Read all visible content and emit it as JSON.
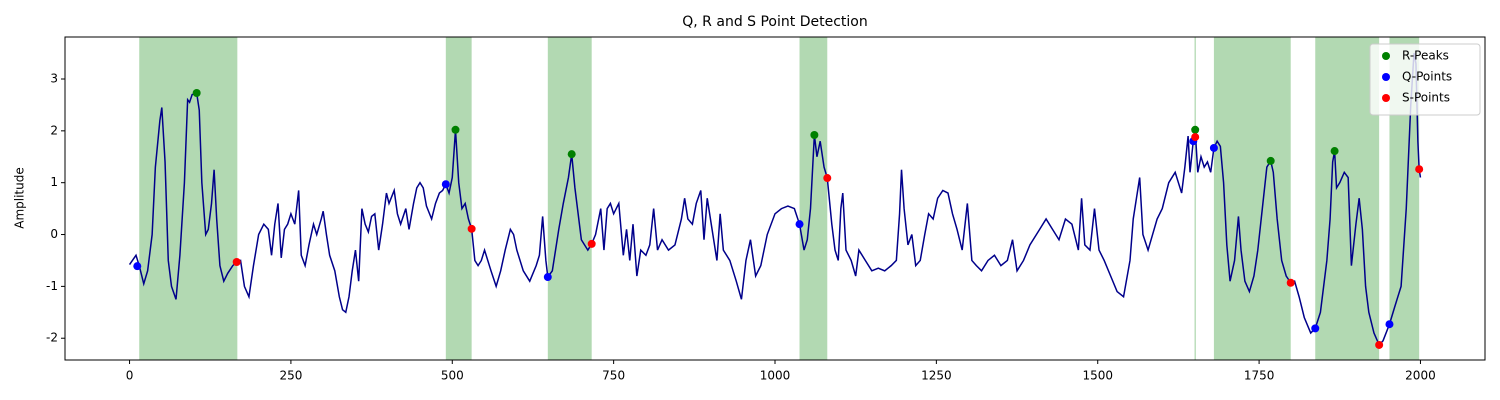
{
  "chart_data": {
    "type": "line",
    "title": "Q, R and S Point Detection",
    "y_label": "Amplitude",
    "xlim": [
      -100,
      2100
    ],
    "ylim": [
      -2.42,
      3.81
    ],
    "xticks": [
      0,
      250,
      500,
      750,
      1000,
      1250,
      1500,
      1750,
      2000
    ],
    "yticks": [
      -2,
      -1,
      0,
      1,
      2,
      3
    ],
    "legend": "upper right",
    "span_color": "#008000",
    "spans": [
      [
        15,
        167
      ],
      [
        490,
        530
      ],
      [
        648,
        716
      ],
      [
        1038,
        1081
      ],
      [
        1650,
        1652
      ],
      [
        1680,
        1799
      ],
      [
        1837,
        1936
      ],
      [
        1952,
        1998
      ]
    ],
    "series": [
      {
        "mode": "line",
        "color": "#00008b",
        "x": [
          0,
          10,
          15,
          22,
          28,
          35,
          40,
          47,
          50,
          55,
          60,
          65,
          72,
          78,
          85,
          90,
          93,
          97,
          104,
          108,
          112,
          118,
          122,
          127,
          131,
          135,
          140,
          146,
          152,
          160,
          166,
          172,
          178,
          185,
          192,
          200,
          208,
          215,
          220,
          225,
          230,
          235,
          240,
          245,
          250,
          256,
          262,
          266,
          272,
          278,
          285,
          290,
          297,
          300,
          305,
          310,
          318,
          325,
          330,
          335,
          340,
          345,
          350,
          355,
          360,
          365,
          370,
          375,
          380,
          386,
          392,
          398,
          402,
          410,
          415,
          420,
          428,
          433,
          440,
          445,
          450,
          455,
          460,
          468,
          474,
          480,
          485,
          490,
          495,
          500,
          505,
          510,
          515,
          520,
          525,
          530,
          535,
          540,
          545,
          550,
          555,
          560,
          568,
          575,
          582,
          590,
          595,
          600,
          610,
          620,
          630,
          635,
          640,
          645,
          648,
          655,
          660,
          665,
          672,
          680,
          685,
          690,
          700,
          710,
          716,
          722,
          730,
          735,
          740,
          745,
          750,
          758,
          765,
          770,
          775,
          780,
          786,
          792,
          800,
          806,
          812,
          818,
          825,
          835,
          845,
          855,
          860,
          865,
          872,
          878,
          885,
          890,
          895,
          900,
          910,
          915,
          920,
          930,
          940,
          948,
          955,
          962,
          970,
          978,
          988,
          1000,
          1010,
          1020,
          1030,
          1038,
          1045,
          1050,
          1055,
          1061,
          1065,
          1070,
          1076,
          1081,
          1088,
          1093,
          1098,
          1102,
          1105,
          1110,
          1118,
          1125,
          1130,
          1140,
          1150,
          1160,
          1170,
          1180,
          1188,
          1193,
          1196,
          1200,
          1206,
          1212,
          1218,
          1225,
          1232,
          1238,
          1245,
          1252,
          1260,
          1268,
          1275,
          1282,
          1290,
          1298,
          1305,
          1312,
          1320,
          1330,
          1340,
          1350,
          1360,
          1368,
          1375,
          1385,
          1395,
          1410,
          1420,
          1430,
          1440,
          1450,
          1460,
          1470,
          1475,
          1480,
          1488,
          1495,
          1502,
          1510,
          1520,
          1530,
          1540,
          1550,
          1555,
          1560,
          1565,
          1570,
          1578,
          1585,
          1592,
          1600,
          1610,
          1620,
          1625,
          1630,
          1635,
          1640,
          1643,
          1648,
          1651,
          1655,
          1660,
          1665,
          1670,
          1675,
          1680,
          1685,
          1690,
          1695,
          1700,
          1705,
          1712,
          1718,
          1722,
          1728,
          1735,
          1742,
          1748,
          1755,
          1762,
          1768,
          1772,
          1778,
          1785,
          1792,
          1799,
          1805,
          1812,
          1820,
          1830,
          1837,
          1845,
          1850,
          1855,
          1860,
          1864,
          1867,
          1870,
          1875,
          1882,
          1888,
          1893,
          1900,
          1905,
          1910,
          1915,
          1920,
          1928,
          1936,
          1942,
          1952,
          1960,
          1970,
          1978,
          1985,
          1990,
          1993,
          1996,
          1998,
          2000
        ],
        "values": [
          -0.58,
          -0.4,
          -0.6,
          -0.95,
          -0.7,
          0,
          1.3,
          2.2,
          2.45,
          1.4,
          -0.5,
          -1.0,
          -1.25,
          -0.4,
          1.0,
          2.6,
          2.55,
          2.7,
          2.73,
          2.4,
          1.0,
          0.0,
          0.1,
          0.6,
          1.25,
          0.3,
          -0.6,
          -0.9,
          -0.75,
          -0.6,
          -0.53,
          -0.5,
          -1.0,
          -1.2,
          -0.6,
          0,
          0.2,
          0.1,
          -0.4,
          0.2,
          0.6,
          -0.45,
          0.1,
          0.2,
          0.4,
          0.2,
          0.85,
          -0.4,
          -0.6,
          -0.2,
          0.2,
          0,
          0.3,
          0.45,
          0,
          -0.4,
          -0.7,
          -1.2,
          -1.45,
          -1.5,
          -1.2,
          -0.7,
          -0.3,
          -0.9,
          0.5,
          0.2,
          0.05,
          0.35,
          0.4,
          -0.3,
          0.2,
          0.8,
          0.6,
          0.85,
          0.4,
          0.2,
          0.5,
          0.1,
          0.6,
          0.9,
          1.0,
          0.9,
          0.55,
          0.3,
          0.6,
          0.8,
          0.85,
          0.97,
          0.8,
          1.1,
          2.02,
          1.0,
          0.5,
          0.6,
          0.3,
          0.11,
          -0.5,
          -0.6,
          -0.5,
          -0.3,
          -0.5,
          -0.7,
          -1.0,
          -0.7,
          -0.3,
          0.1,
          0.0,
          -0.3,
          -0.7,
          -0.9,
          -0.6,
          -0.4,
          0.35,
          -0.5,
          -0.82,
          -0.7,
          -0.3,
          0.1,
          0.6,
          1.1,
          1.55,
          0.9,
          -0.1,
          -0.3,
          -0.18,
          0,
          0.5,
          -0.3,
          0.5,
          0.6,
          0.4,
          0.6,
          -0.4,
          0.1,
          -0.5,
          0.2,
          -0.8,
          -0.3,
          -0.4,
          -0.2,
          0.5,
          -0.3,
          -0.1,
          -0.3,
          -0.2,
          0.3,
          0.7,
          0.3,
          0.2,
          0.6,
          0.85,
          -0.1,
          0.7,
          0.3,
          -0.5,
          0.4,
          -0.3,
          -0.5,
          -0.9,
          -1.25,
          -0.5,
          -0.1,
          -0.8,
          -0.6,
          0,
          0.4,
          0.5,
          0.55,
          0.5,
          0.2,
          -0.3,
          -0.1,
          0.5,
          1.92,
          1.5,
          1.8,
          1.3,
          1.09,
          0.2,
          -0.3,
          -0.5,
          0.5,
          0.8,
          -0.3,
          -0.5,
          -0.8,
          -0.3,
          -0.5,
          -0.7,
          -0.65,
          -0.7,
          -0.6,
          -0.5,
          0.4,
          1.25,
          0.5,
          -0.2,
          0,
          -0.6,
          -0.5,
          0,
          0.4,
          0.3,
          0.7,
          0.85,
          0.8,
          0.4,
          0.1,
          -0.3,
          0.6,
          -0.5,
          -0.6,
          -0.7,
          -0.5,
          -0.4,
          -0.6,
          -0.5,
          -0.1,
          -0.7,
          -0.5,
          -0.2,
          0.1,
          0.3,
          0.1,
          -0.1,
          0.3,
          0.2,
          -0.3,
          0.7,
          -0.2,
          -0.3,
          0.5,
          -0.3,
          -0.5,
          -0.8,
          -1.1,
          -1.2,
          -0.5,
          0.3,
          0.7,
          1.1,
          0,
          -0.3,
          0,
          0.3,
          0.5,
          1.0,
          1.2,
          1.0,
          0.8,
          1.3,
          1.9,
          1.2,
          1.8,
          2.02,
          1.2,
          1.5,
          1.3,
          1.4,
          1.2,
          1.67,
          1.8,
          1.7,
          1.0,
          -0.2,
          -0.9,
          -0.5,
          0.35,
          -0.3,
          -0.9,
          -1.1,
          -0.8,
          -0.3,
          0.5,
          1.3,
          1.42,
          1.2,
          0.3,
          -0.5,
          -0.8,
          -0.93,
          -0.9,
          -1.2,
          -1.6,
          -1.9,
          -1.81,
          -1.5,
          -1.0,
          -0.5,
          0.3,
          1.4,
          1.61,
          0.9,
          1.0,
          1.2,
          1.1,
          -0.6,
          0.2,
          0.7,
          0.1,
          -1.0,
          -1.5,
          -1.9,
          -2.13,
          -2.05,
          -1.73,
          -1.4,
          -1.0,
          0.5,
          2.5,
          3.5,
          3.3,
          1.8,
          1.26,
          1.1
        ]
      },
      {
        "mode": "markers",
        "name": "R-Peaks",
        "color": "#008000",
        "x": [
          104,
          505,
          685,
          1061,
          1651,
          1768,
          1867
        ],
        "values": [
          2.73,
          2.02,
          1.55,
          1.92,
          2.02,
          1.42,
          1.61
        ]
      },
      {
        "mode": "markers",
        "name": "Q-Points",
        "color": "#0000ff",
        "x": [
          12,
          490,
          648,
          1038,
          1648,
          1680,
          1837,
          1952
        ],
        "values": [
          -0.61,
          0.97,
          -0.82,
          0.2,
          1.8,
          1.67,
          -1.81,
          -1.73
        ]
      },
      {
        "mode": "markers",
        "name": "S-Points",
        "color": "#ff0000",
        "x": [
          166,
          530,
          716,
          1081,
          1651,
          1799,
          1936,
          1998
        ],
        "values": [
          -0.53,
          0.11,
          -0.18,
          1.09,
          1.88,
          -0.93,
          -2.13,
          1.26
        ]
      }
    ]
  }
}
